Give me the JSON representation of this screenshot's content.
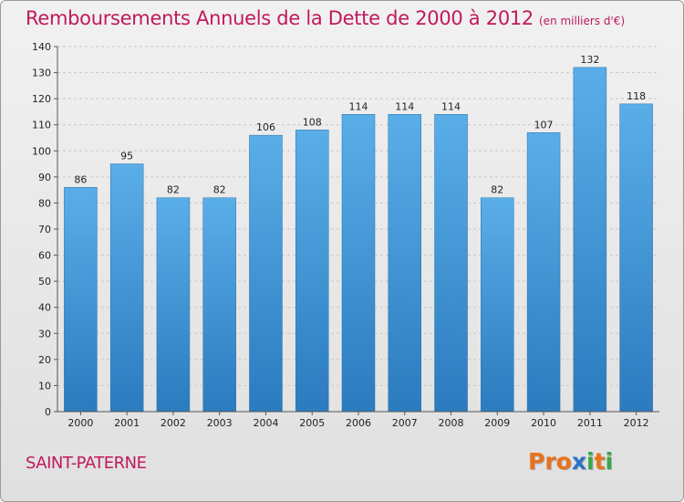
{
  "title": "Remboursements Annuels de la Dette de 2000 à 2012",
  "unit": "(en milliers d'€)",
  "city": "SAINT-PATERNE",
  "logo": {
    "text": "Proxiti",
    "colors": [
      "#e8731a",
      "#e8731a",
      "#e8731a",
      "#2a72c9",
      "#3aa84a",
      "#e8731a",
      "#3aa84a"
    ]
  },
  "colors": {
    "bar_top": "#5aaee8",
    "bar_bottom": "#2b7bbf",
    "title": "#c0195c",
    "grid": "#c8c8c8"
  },
  "chart_data": {
    "type": "bar",
    "title": "Remboursements Annuels de la Dette de 2000 à 2012",
    "categories": [
      "2000",
      "2001",
      "2002",
      "2003",
      "2004",
      "2005",
      "2006",
      "2007",
      "2008",
      "2009",
      "2010",
      "2011",
      "2012"
    ],
    "values": [
      86,
      95,
      82,
      82,
      106,
      108,
      114,
      114,
      114,
      82,
      107,
      132,
      118
    ],
    "ylim": [
      0,
      140
    ],
    "yticks": [
      0,
      10,
      20,
      30,
      40,
      50,
      60,
      70,
      80,
      90,
      100,
      110,
      120,
      130,
      140
    ],
    "grid": true
  }
}
